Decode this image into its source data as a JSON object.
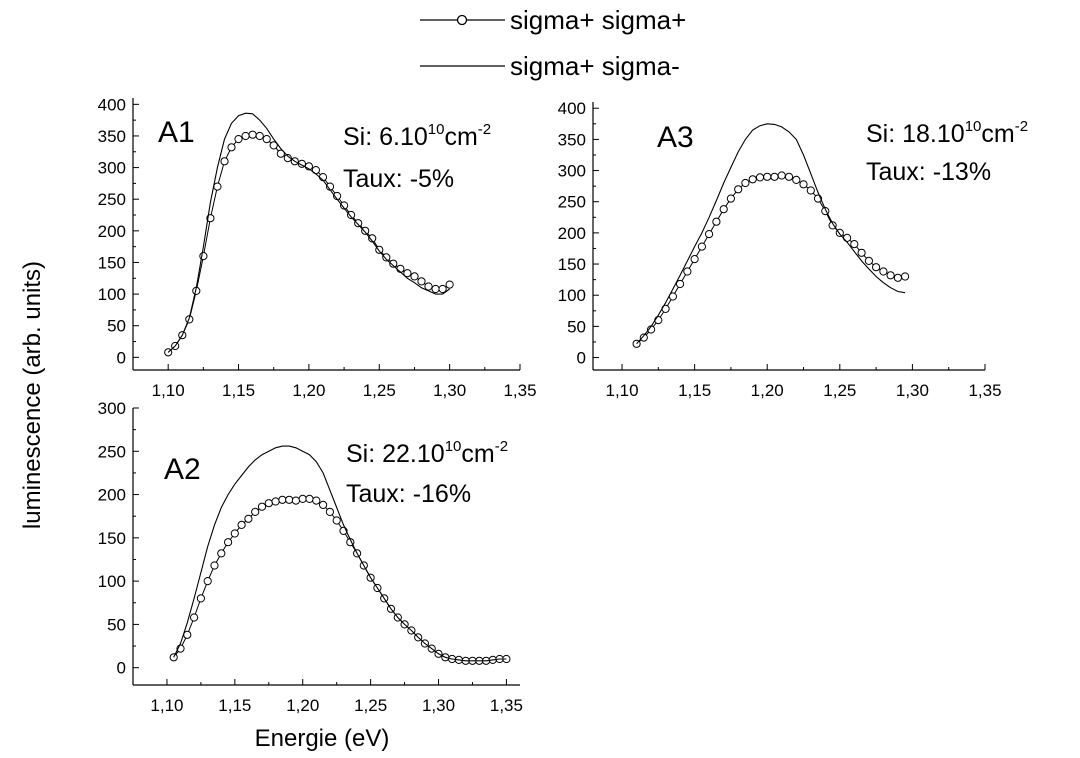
{
  "legend": {
    "entries": [
      "sigma+ sigma+",
      "sigma+ sigma-"
    ]
  },
  "axes": {
    "ylabel": "luminescence (arb. units)",
    "xlabel": "Energie (eV)"
  },
  "chart_data": [
    {
      "type": "line",
      "panel": "A1",
      "annotation_si": "Si: 6.10",
      "annotation_exp": "10",
      "annotation_unit": "cm",
      "annotation_unit_exp": "-2",
      "annotation_taux": "Taux: -5%",
      "xlim": [
        1.075,
        1.35
      ],
      "ylim": [
        -20,
        410
      ],
      "xticks": [
        "1,10",
        "1,15",
        "1,20",
        "1,25",
        "1,30",
        "1,35"
      ],
      "yticks": [
        "0",
        "50",
        "100",
        "150",
        "200",
        "250",
        "300",
        "350",
        "400"
      ],
      "series": [
        {
          "name": "sigma+ sigma+",
          "x": [
            1.1,
            1.105,
            1.11,
            1.115,
            1.12,
            1.125,
            1.13,
            1.135,
            1.14,
            1.145,
            1.15,
            1.155,
            1.16,
            1.165,
            1.17,
            1.175,
            1.18,
            1.185,
            1.19,
            1.195,
            1.2,
            1.205,
            1.21,
            1.215,
            1.22,
            1.225,
            1.23,
            1.235,
            1.24,
            1.245,
            1.25,
            1.255,
            1.26,
            1.265,
            1.27,
            1.275,
            1.28,
            1.285,
            1.29,
            1.295,
            1.3
          ],
          "y": [
            8,
            18,
            35,
            60,
            105,
            160,
            220,
            270,
            310,
            332,
            345,
            350,
            352,
            350,
            345,
            335,
            322,
            315,
            310,
            306,
            302,
            296,
            285,
            270,
            255,
            240,
            225,
            212,
            200,
            188,
            170,
            158,
            148,
            140,
            133,
            128,
            120,
            112,
            108,
            108,
            115
          ]
        },
        {
          "name": "sigma+ sigma-",
          "x": [
            1.1,
            1.105,
            1.11,
            1.115,
            1.12,
            1.125,
            1.13,
            1.135,
            1.14,
            1.145,
            1.15,
            1.155,
            1.16,
            1.165,
            1.17,
            1.175,
            1.18,
            1.185,
            1.19,
            1.195,
            1.2,
            1.205,
            1.21,
            1.215,
            1.22,
            1.225,
            1.23,
            1.235,
            1.24,
            1.245,
            1.25,
            1.255,
            1.26,
            1.265,
            1.27,
            1.275,
            1.28,
            1.285,
            1.29,
            1.295,
            1.3
          ],
          "y": [
            8,
            18,
            35,
            62,
            110,
            175,
            245,
            300,
            345,
            370,
            382,
            386,
            385,
            375,
            362,
            345,
            330,
            318,
            310,
            304,
            298,
            290,
            280,
            265,
            250,
            236,
            222,
            210,
            198,
            184,
            168,
            155,
            145,
            135,
            125,
            118,
            110,
            105,
            100,
            100,
            108
          ]
        }
      ]
    },
    {
      "type": "line",
      "panel": "A2",
      "annotation_si": "Si: 22.10",
      "annotation_exp": "10",
      "annotation_unit": "cm",
      "annotation_unit_exp": "-2",
      "annotation_taux": "Taux: -16%",
      "xlim": [
        1.075,
        1.36
      ],
      "ylim": [
        -20,
        300
      ],
      "xticks": [
        "1,10",
        "1,15",
        "1,20",
        "1,25",
        "1,30",
        "1,35"
      ],
      "yticks": [
        "0",
        "50",
        "100",
        "150",
        "200",
        "250",
        "300"
      ],
      "series": [
        {
          "name": "sigma+ sigma+",
          "x": [
            1.105,
            1.11,
            1.115,
            1.12,
            1.125,
            1.13,
            1.135,
            1.14,
            1.145,
            1.15,
            1.155,
            1.16,
            1.165,
            1.17,
            1.175,
            1.18,
            1.185,
            1.19,
            1.195,
            1.2,
            1.205,
            1.21,
            1.215,
            1.22,
            1.225,
            1.23,
            1.235,
            1.24,
            1.245,
            1.25,
            1.255,
            1.26,
            1.265,
            1.27,
            1.275,
            1.28,
            1.285,
            1.29,
            1.295,
            1.3,
            1.305,
            1.31,
            1.315,
            1.32,
            1.325,
            1.33,
            1.335,
            1.34,
            1.345,
            1.35
          ],
          "y": [
            12,
            22,
            38,
            58,
            80,
            100,
            118,
            132,
            145,
            155,
            165,
            172,
            180,
            186,
            190,
            192,
            194,
            194,
            193,
            195,
            195,
            193,
            188,
            180,
            170,
            158,
            145,
            132,
            118,
            104,
            92,
            80,
            68,
            58,
            50,
            43,
            35,
            28,
            22,
            16,
            12,
            10,
            9,
            8,
            8,
            8,
            8,
            9,
            10,
            10
          ]
        },
        {
          "name": "sigma+ sigma-",
          "x": [
            1.105,
            1.11,
            1.115,
            1.12,
            1.125,
            1.13,
            1.135,
            1.14,
            1.145,
            1.15,
            1.155,
            1.16,
            1.165,
            1.17,
            1.175,
            1.18,
            1.185,
            1.19,
            1.195,
            1.2,
            1.205,
            1.21,
            1.215,
            1.22,
            1.225,
            1.23,
            1.235,
            1.24,
            1.245,
            1.25,
            1.255,
            1.26,
            1.265,
            1.27,
            1.275,
            1.28,
            1.285,
            1.29,
            1.295,
            1.3,
            1.305,
            1.31,
            1.315,
            1.32,
            1.325,
            1.33,
            1.335,
            1.34,
            1.345,
            1.35
          ],
          "y": [
            12,
            28,
            52,
            80,
            110,
            140,
            165,
            185,
            200,
            212,
            222,
            232,
            240,
            246,
            250,
            254,
            256,
            256,
            254,
            250,
            246,
            238,
            225,
            205,
            185,
            165,
            148,
            132,
            118,
            104,
            92,
            80,
            68,
            58,
            50,
            43,
            35,
            28,
            22,
            16,
            12,
            10,
            9,
            8,
            8,
            8,
            8,
            9,
            10,
            10
          ]
        }
      ]
    },
    {
      "type": "line",
      "panel": "A3",
      "annotation_si": "Si: 18.10",
      "annotation_exp": "10",
      "annotation_unit": "cm",
      "annotation_unit_exp": "-2",
      "annotation_taux": "Taux: -13%",
      "xlim": [
        1.08,
        1.35
      ],
      "ylim": [
        -20,
        410
      ],
      "xticks": [
        "1,10",
        "1,15",
        "1,20",
        "1,25",
        "1,30",
        "1,35"
      ],
      "yticks": [
        "0",
        "50",
        "100",
        "150",
        "200",
        "250",
        "300",
        "350",
        "400"
      ],
      "series": [
        {
          "name": "sigma+ sigma+",
          "x": [
            1.11,
            1.115,
            1.12,
            1.125,
            1.13,
            1.135,
            1.14,
            1.145,
            1.15,
            1.155,
            1.16,
            1.165,
            1.17,
            1.175,
            1.18,
            1.185,
            1.19,
            1.195,
            1.2,
            1.205,
            1.21,
            1.215,
            1.22,
            1.225,
            1.23,
            1.235,
            1.24,
            1.245,
            1.25,
            1.255,
            1.26,
            1.265,
            1.27,
            1.275,
            1.28,
            1.285,
            1.29,
            1.295
          ],
          "y": [
            22,
            32,
            45,
            60,
            78,
            98,
            118,
            138,
            158,
            178,
            198,
            218,
            238,
            255,
            270,
            280,
            286,
            289,
            290,
            290,
            292,
            290,
            285,
            278,
            268,
            255,
            235,
            212,
            200,
            192,
            182,
            168,
            155,
            145,
            138,
            132,
            128,
            130
          ]
        },
        {
          "name": "sigma+ sigma-",
          "x": [
            1.11,
            1.115,
            1.12,
            1.125,
            1.13,
            1.135,
            1.14,
            1.145,
            1.15,
            1.155,
            1.16,
            1.165,
            1.17,
            1.175,
            1.18,
            1.185,
            1.19,
            1.195,
            1.2,
            1.205,
            1.21,
            1.215,
            1.22,
            1.225,
            1.23,
            1.235,
            1.24,
            1.245,
            1.25,
            1.255,
            1.26,
            1.265,
            1.27,
            1.275,
            1.28,
            1.285,
            1.29,
            1.295
          ],
          "y": [
            22,
            35,
            50,
            68,
            88,
            110,
            132,
            155,
            178,
            200,
            225,
            252,
            280,
            305,
            330,
            350,
            365,
            372,
            375,
            374,
            370,
            362,
            350,
            325,
            295,
            265,
            238,
            215,
            198,
            185,
            170,
            155,
            142,
            130,
            120,
            112,
            106,
            104
          ]
        }
      ]
    }
  ]
}
